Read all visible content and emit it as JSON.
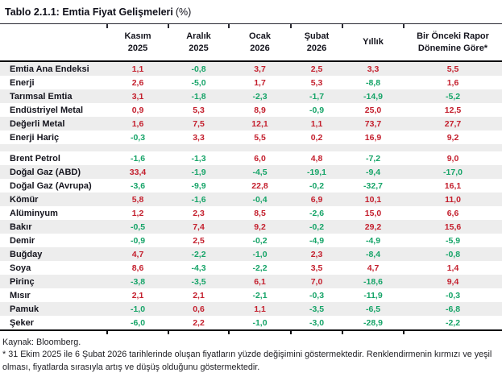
{
  "title": {
    "main": "Tablo 2.1.1: Emtia Fiyat Gelişmeleri",
    "unit": "(%)"
  },
  "colors": {
    "increase": "#c4202e",
    "decrease": "#16a468",
    "stripe": "#ededed"
  },
  "table": {
    "columns": [
      {
        "line1": "Kasım",
        "line2": "2025"
      },
      {
        "line1": "Aralık",
        "line2": "2025"
      },
      {
        "line1": "Ocak",
        "line2": "2026"
      },
      {
        "line1": "Şubat",
        "line2": "2026"
      },
      {
        "line1": "Yıllık",
        "line2": ""
      },
      {
        "line1": "Bir Önceki Rapor",
        "line2": "Dönemine Göre*"
      }
    ],
    "rows": [
      {
        "group": 1,
        "label": "Emtia Ana Endeksi",
        "values": [
          "1,1",
          "-0,8",
          "3,7",
          "2,5",
          "3,3",
          "5,5"
        ]
      },
      {
        "group": 1,
        "label": "Enerji",
        "values": [
          "2,6",
          "-5,0",
          "1,7",
          "5,3",
          "-8,8",
          "1,6"
        ]
      },
      {
        "group": 1,
        "label": "Tarımsal Emtia",
        "values": [
          "3,1",
          "-1,8",
          "-2,3",
          "-1,7",
          "-14,9",
          "-5,2"
        ]
      },
      {
        "group": 1,
        "label": "Endüstriyel Metal",
        "values": [
          "0,9",
          "5,3",
          "8,9",
          "-0,9",
          "25,0",
          "12,5"
        ]
      },
      {
        "group": 1,
        "label": "Değerli Metal",
        "values": [
          "1,6",
          "7,5",
          "12,1",
          "1,1",
          "73,7",
          "27,7"
        ]
      },
      {
        "group": 1,
        "label": "Enerji Hariç",
        "values": [
          "-0,3",
          "3,3",
          "5,5",
          "0,2",
          "16,9",
          "9,2"
        ]
      },
      {
        "group": 2,
        "label": "Brent Petrol",
        "values": [
          "-1,6",
          "-1,3",
          "6,0",
          "4,8",
          "-7,2",
          "9,0"
        ]
      },
      {
        "group": 2,
        "label": "Doğal Gaz (ABD)",
        "values": [
          "33,4",
          "-1,9",
          "-4,5",
          "-19,1",
          "-9,4",
          "-17,0"
        ]
      },
      {
        "group": 2,
        "label": "Doğal Gaz (Avrupa)",
        "values": [
          "-3,6",
          "-9,9",
          "22,8",
          "-0,2",
          "-32,7",
          "16,1"
        ]
      },
      {
        "group": 2,
        "label": "Kömür",
        "values": [
          "5,8",
          "-1,6",
          "-0,4",
          "6,9",
          "10,1",
          "11,0"
        ]
      },
      {
        "group": 2,
        "label": "Alüminyum",
        "values": [
          "1,2",
          "2,3",
          "8,5",
          "-2,6",
          "15,0",
          "6,6"
        ]
      },
      {
        "group": 2,
        "label": "Bakır",
        "values": [
          "-0,5",
          "7,4",
          "9,2",
          "-0,2",
          "29,2",
          "15,6"
        ]
      },
      {
        "group": 2,
        "label": "Demir",
        "values": [
          "-0,9",
          "2,5",
          "-0,2",
          "-4,9",
          "-4,9",
          "-5,9"
        ]
      },
      {
        "group": 2,
        "label": "Buğday",
        "values": [
          "4,7",
          "-2,2",
          "-1,0",
          "2,3",
          "-8,4",
          "-0,8"
        ]
      },
      {
        "group": 2,
        "label": "Soya",
        "values": [
          "8,6",
          "-4,3",
          "-2,2",
          "3,5",
          "4,7",
          "1,4"
        ]
      },
      {
        "group": 2,
        "label": "Pirinç",
        "values": [
          "-3,8",
          "-3,5",
          "6,1",
          "7,0",
          "-18,6",
          "9,4"
        ]
      },
      {
        "group": 2,
        "label": "Mısır",
        "values": [
          "2,1",
          "2,1",
          "-2,1",
          "-0,3",
          "-11,9",
          "-0,3"
        ]
      },
      {
        "group": 2,
        "label": "Pamuk",
        "values": [
          "-1,0",
          "0,6",
          "1,1",
          "-3,5",
          "-6,5",
          "-6,8"
        ]
      },
      {
        "group": 2,
        "label": "Şeker",
        "values": [
          "-6,0",
          "2,2",
          "-1,0",
          "-3,0",
          "-28,9",
          "-2,2"
        ]
      }
    ]
  },
  "footer": {
    "source": "Kaynak: Bloomberg.",
    "note": "* 31 Ekim 2025 ile 6 Şubat 2026 tarihlerinde oluşan fiyatların yüzde değişimini göstermektedir. Renklendirmenin kırmızı ve yeşil olması, fiyatlarda sırasıyla artış ve düşüş olduğunu göstermektedir."
  }
}
